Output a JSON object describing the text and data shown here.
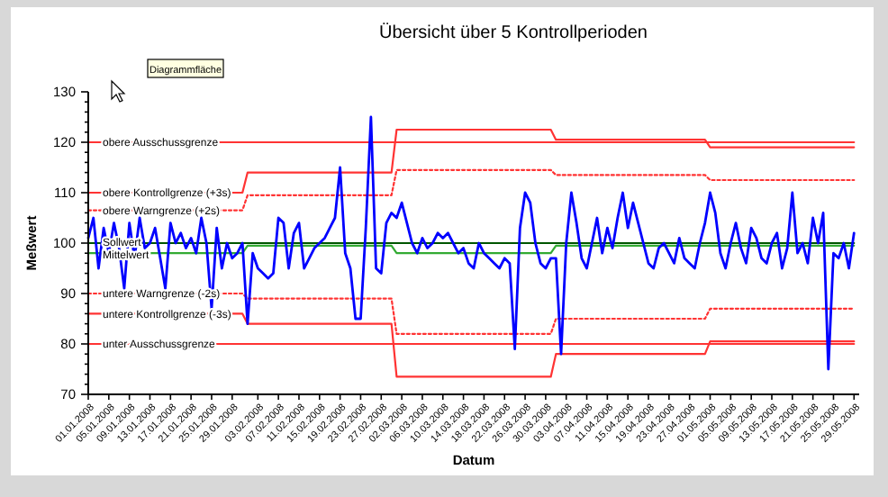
{
  "chart_data": {
    "type": "line",
    "title": "Übersicht über 5 Kontrollperioden",
    "xlabel": "Datum",
    "ylabel": "Meßwert",
    "annotations": [
      "Diagrammfläche"
    ],
    "xlim": [
      "2008-01-01",
      "2008-05-30"
    ],
    "xticks": [
      {
        "value": "2008-01-01",
        "label": "01.01.2008"
      },
      {
        "value": "2008-01-05",
        "label": "05.01.2008"
      },
      {
        "value": "2008-01-09",
        "label": "09.01.2008"
      },
      {
        "value": "2008-01-13",
        "label": "13.01.2008"
      },
      {
        "value": "2008-01-17",
        "label": "17.01.2008"
      },
      {
        "value": "2008-01-21",
        "label": "21.01.2008"
      },
      {
        "value": "2008-01-25",
        "label": "25.01.2008"
      },
      {
        "value": "2008-01-29",
        "label": "29.01.2008"
      },
      {
        "value": "2008-02-03",
        "label": "03.02.2008"
      },
      {
        "value": "2008-02-07",
        "label": "07.02.2008"
      },
      {
        "value": "2008-02-11",
        "label": "11.02.2008"
      },
      {
        "value": "2008-02-15",
        "label": "15.02.2008"
      },
      {
        "value": "2008-02-19",
        "label": "19.02.2008"
      },
      {
        "value": "2008-02-23",
        "label": "23.02.2008"
      },
      {
        "value": "2008-02-27",
        "label": "27.02.2008"
      },
      {
        "value": "2008-03-02",
        "label": "02.03.2008"
      },
      {
        "value": "2008-03-06",
        "label": "06.03.2008"
      },
      {
        "value": "2008-03-10",
        "label": "10.03.2008"
      },
      {
        "value": "2008-03-14",
        "label": "14.03.2008"
      },
      {
        "value": "2008-03-18",
        "label": "18.03.2008"
      },
      {
        "value": "2008-03-22",
        "label": "22.03.2008"
      },
      {
        "value": "2008-03-26",
        "label": "26.03.2008"
      },
      {
        "value": "2008-03-30",
        "label": "30.03.2008"
      },
      {
        "value": "2008-04-03",
        "label": "03.04.2008"
      },
      {
        "value": "2008-04-07",
        "label": "07.04.2008"
      },
      {
        "value": "2008-04-11",
        "label": "11.04.2008"
      },
      {
        "value": "2008-04-15",
        "label": "15.04.2008"
      },
      {
        "value": "2008-04-19",
        "label": "19.04.2008"
      },
      {
        "value": "2008-04-23",
        "label": "23.04.2008"
      },
      {
        "value": "2008-04-27",
        "label": "27.04.2008"
      },
      {
        "value": "2008-05-01",
        "label": "01.05.2008"
      },
      {
        "value": "2008-05-05",
        "label": "05.05.2008"
      },
      {
        "value": "2008-05-09",
        "label": "09.05.2008"
      },
      {
        "value": "2008-05-13",
        "label": "13.05.2008"
      },
      {
        "value": "2008-05-17",
        "label": "17.05.2008"
      },
      {
        "value": "2008-05-21",
        "label": "21.05.2008"
      },
      {
        "value": "2008-05-25",
        "label": "25.05.2008"
      },
      {
        "value": "2008-05-29",
        "label": "29.05.2008"
      }
    ],
    "ylim": [
      70,
      130
    ],
    "yticks": [
      70,
      {
        "value": 72,
        "label": null
      },
      {
        "value": 74,
        "label": null
      },
      {
        "value": 76,
        "label": null
      },
      {
        "value": 78,
        "label": null
      },
      80,
      {
        "value": 82,
        "label": null
      },
      {
        "value": 84,
        "label": null
      },
      {
        "value": 86,
        "label": null
      },
      {
        "value": 88,
        "label": null
      },
      90,
      {
        "value": 92,
        "label": null
      },
      {
        "value": 94,
        "label": null
      },
      {
        "value": 96,
        "label": null
      },
      {
        "value": 98,
        "label": null
      },
      100,
      {
        "value": 102,
        "label": null
      },
      {
        "value": 104,
        "label": null
      },
      {
        "value": 106,
        "label": null
      },
      {
        "value": 108,
        "label": null
      },
      110,
      {
        "value": 112,
        "label": null
      },
      {
        "value": 114,
        "label": null
      },
      {
        "value": 116,
        "label": null
      },
      {
        "value": 118,
        "label": null
      },
      120,
      {
        "value": 122,
        "label": null
      },
      {
        "value": 124,
        "label": null
      },
      {
        "value": 126,
        "label": null
      },
      {
        "value": 128,
        "label": null
      },
      130
    ],
    "grid": false,
    "marker": "none",
    "series": [
      {
        "name": "obere Ausschussgrenze",
        "color": "#ff3333",
        "line_style": "solid",
        "x": [
          "2008-01-01",
          "2008-05-29"
        ],
        "values": [
          120,
          120
        ]
      },
      {
        "name": "obere Kontrollgrenze (+3s)",
        "color": "#ff3333",
        "line_style": "solid",
        "x": [
          "2008-01-01",
          "2008-01-31",
          "2008-02-01",
          "2008-02-29",
          "2008-03-01",
          "2008-03-31",
          "2008-04-01",
          "2008-04-30",
          "2008-05-01",
          "2008-05-29"
        ],
        "values": [
          110,
          110,
          114,
          114,
          122.5,
          122.5,
          120.5,
          120.5,
          119,
          119
        ]
      },
      {
        "name": "obere Warngrenze (+2s)",
        "color": "#ff3333",
        "line_style": "dotted",
        "x": [
          "2008-01-01",
          "2008-01-31",
          "2008-02-01",
          "2008-02-29",
          "2008-03-01",
          "2008-03-31",
          "2008-04-01",
          "2008-04-30",
          "2008-05-01",
          "2008-05-29"
        ],
        "values": [
          106.5,
          106.5,
          109.5,
          109.5,
          114.5,
          114.5,
          113.5,
          113.5,
          112.5,
          112.5
        ]
      },
      {
        "name": "Sollwert",
        "color": "#005500",
        "line_style": "solid",
        "x": [
          "2008-01-01",
          "2008-05-29"
        ],
        "values": [
          100,
          100
        ]
      },
      {
        "name": "Mittelwert",
        "color": "#33aa33",
        "line_style": "solid",
        "x": [
          "2008-01-01",
          "2008-01-31",
          "2008-02-01",
          "2008-02-29",
          "2008-03-01",
          "2008-03-31",
          "2008-04-01",
          "2008-04-30",
          "2008-05-01",
          "2008-05-29"
        ],
        "values": [
          98,
          98,
          99.5,
          99.5,
          98,
          98,
          99.5,
          99.5,
          99.5,
          99.5
        ]
      },
      {
        "name": "untere Warngrenze (-2s)",
        "color": "#ff3333",
        "line_style": "dotted",
        "x": [
          "2008-01-01",
          "2008-01-31",
          "2008-02-01",
          "2008-02-29",
          "2008-03-01",
          "2008-03-31",
          "2008-04-01",
          "2008-04-30",
          "2008-05-01",
          "2008-05-29"
        ],
        "values": [
          90,
          90,
          89,
          89,
          82,
          82,
          85,
          85,
          87,
          87
        ]
      },
      {
        "name": "untere Kontrollgrenze (-3s)",
        "color": "#ff3333",
        "line_style": "solid",
        "x": [
          "2008-01-01",
          "2008-01-31",
          "2008-02-01",
          "2008-02-29",
          "2008-03-01",
          "2008-03-31",
          "2008-04-01",
          "2008-04-30",
          "2008-05-01",
          "2008-05-29"
        ],
        "values": [
          86,
          86,
          84,
          84,
          73.5,
          73.5,
          78,
          78,
          80.5,
          80.5
        ]
      },
      {
        "name": "unter Ausschussgrenze",
        "color": "#ff3333",
        "line_style": "solid",
        "x": [
          "2008-01-01",
          "2008-05-29"
        ],
        "values": [
          80,
          80
        ]
      },
      {
        "color": "#0000ff",
        "line_style": "solid",
        "x": [
          "2008-01-01",
          "2008-01-02",
          "2008-01-03",
          "2008-01-04",
          "2008-01-05",
          "2008-01-06",
          "2008-01-07",
          "2008-01-08",
          "2008-01-09",
          "2008-01-10",
          "2008-01-11",
          "2008-01-12",
          "2008-01-13",
          "2008-01-14",
          "2008-01-15",
          "2008-01-16",
          "2008-01-17",
          "2008-01-18",
          "2008-01-19",
          "2008-01-20",
          "2008-01-21",
          "2008-01-22",
          "2008-01-23",
          "2008-01-24",
          "2008-01-25",
          "2008-01-26",
          "2008-01-27",
          "2008-01-28",
          "2008-01-29",
          "2008-01-30",
          "2008-01-31",
          "2008-02-01",
          "2008-02-02",
          "2008-02-03",
          "2008-02-04",
          "2008-02-05",
          "2008-02-06",
          "2008-02-07",
          "2008-02-08",
          "2008-02-09",
          "2008-02-10",
          "2008-02-11",
          "2008-02-12",
          "2008-02-13",
          "2008-02-14",
          "2008-02-15",
          "2008-02-16",
          "2008-02-17",
          "2008-02-18",
          "2008-02-19",
          "2008-02-20",
          "2008-02-21",
          "2008-02-22",
          "2008-02-23",
          "2008-02-24",
          "2008-02-25",
          "2008-02-26",
          "2008-02-27",
          "2008-02-28",
          "2008-02-29",
          "2008-03-01",
          "2008-03-02",
          "2008-03-03",
          "2008-03-04",
          "2008-03-05",
          "2008-03-06",
          "2008-03-07",
          "2008-03-08",
          "2008-03-09",
          "2008-03-10",
          "2008-03-11",
          "2008-03-12",
          "2008-03-13",
          "2008-03-14",
          "2008-03-15",
          "2008-03-16",
          "2008-03-17",
          "2008-03-18",
          "2008-03-19",
          "2008-03-20",
          "2008-03-21",
          "2008-03-22",
          "2008-03-23",
          "2008-03-24",
          "2008-03-25",
          "2008-03-26",
          "2008-03-27",
          "2008-03-28",
          "2008-03-29",
          "2008-03-30",
          "2008-03-31",
          "2008-04-01",
          "2008-04-02",
          "2008-04-03",
          "2008-04-04",
          "2008-04-05",
          "2008-04-06",
          "2008-04-07",
          "2008-04-08",
          "2008-04-09",
          "2008-04-10",
          "2008-04-11",
          "2008-04-12",
          "2008-04-13",
          "2008-04-14",
          "2008-04-15",
          "2008-04-16",
          "2008-04-17",
          "2008-04-18",
          "2008-04-19",
          "2008-04-20",
          "2008-04-21",
          "2008-04-22",
          "2008-04-23",
          "2008-04-24",
          "2008-04-25",
          "2008-04-26",
          "2008-04-27",
          "2008-04-28",
          "2008-04-29",
          "2008-04-30",
          "2008-05-01",
          "2008-05-02",
          "2008-05-03",
          "2008-05-04",
          "2008-05-05",
          "2008-05-06",
          "2008-05-07",
          "2008-05-08",
          "2008-05-09",
          "2008-05-10",
          "2008-05-11",
          "2008-05-12",
          "2008-05-13",
          "2008-05-14",
          "2008-05-15",
          "2008-05-16",
          "2008-05-17",
          "2008-05-18",
          "2008-05-19",
          "2008-05-20",
          "2008-05-21",
          "2008-05-22",
          "2008-05-23",
          "2008-05-24",
          "2008-05-25",
          "2008-05-26",
          "2008-05-27",
          "2008-05-28",
          "2008-05-29"
        ],
        "values": [
          101,
          105,
          95,
          103,
          98,
          104,
          99,
          91,
          104,
          97,
          105,
          99,
          100,
          103,
          97,
          91,
          104,
          100,
          102,
          99,
          101,
          98,
          105,
          100,
          87,
          103,
          95,
          100,
          97,
          98,
          100,
          84,
          98,
          95,
          94,
          93,
          94,
          105,
          104,
          95,
          102,
          104,
          95,
          97,
          99,
          100,
          101,
          103,
          105,
          115,
          98,
          95,
          85,
          85,
          103,
          125,
          95,
          94,
          104,
          106,
          105,
          108,
          104,
          100,
          98,
          101,
          99,
          100,
          102,
          101,
          102,
          100,
          98,
          99,
          96,
          95,
          100,
          98,
          97,
          96,
          95,
          97,
          96,
          79,
          103,
          110,
          108,
          100,
          96,
          95,
          97,
          97,
          78,
          100,
          110,
          104,
          97,
          95,
          100,
          105,
          98,
          103,
          99,
          105,
          110,
          103,
          108,
          104,
          100,
          96,
          95,
          99,
          100,
          98,
          96,
          101,
          97,
          96,
          95,
          100,
          104,
          110,
          106,
          98,
          95,
          100,
          104,
          99,
          96,
          103,
          101,
          97,
          96,
          100,
          102,
          95,
          99,
          110,
          98,
          100,
          96,
          105,
          100,
          106,
          75,
          98,
          97,
          100,
          95,
          102
        ]
      }
    ]
  }
}
